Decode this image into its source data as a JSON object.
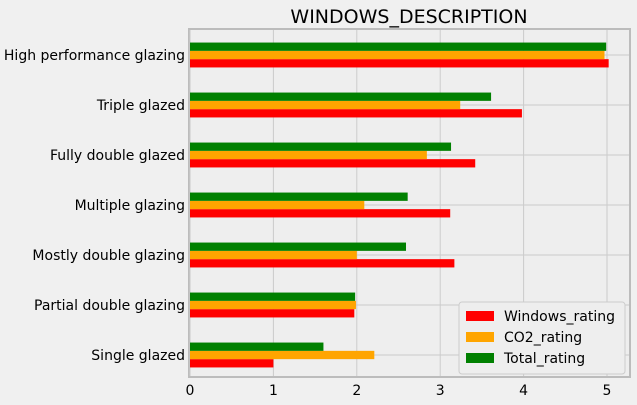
{
  "chart_data": {
    "type": "bar",
    "orientation": "horizontal",
    "title": "WINDOWS_DESCRIPTION",
    "xlabel": "",
    "ylabel": "",
    "xlim": [
      0,
      5.3
    ],
    "xticks": [
      "0",
      "1",
      "2",
      "3",
      "4",
      "5"
    ],
    "grid": true,
    "legend_position": "bottom-right",
    "categories": [
      "Single glazed",
      "Partial double glazing",
      "Mostly double glazing",
      "Multiple glazing",
      "Fully double glazed",
      "Triple glazed",
      "High performance glazing"
    ],
    "series": [
      {
        "name": "Windows_rating",
        "color": "#ff0000",
        "values": [
          1.0,
          1.97,
          3.17,
          3.12,
          3.42,
          3.98,
          5.02
        ]
      },
      {
        "name": "CO2_rating",
        "color": "#ffa500",
        "values": [
          2.21,
          1.99,
          2.0,
          2.09,
          2.84,
          3.24,
          4.97
        ]
      },
      {
        "name": "Total_rating",
        "color": "#008000",
        "values": [
          1.6,
          1.98,
          2.59,
          2.61,
          3.13,
          3.61,
          4.99
        ]
      }
    ]
  }
}
